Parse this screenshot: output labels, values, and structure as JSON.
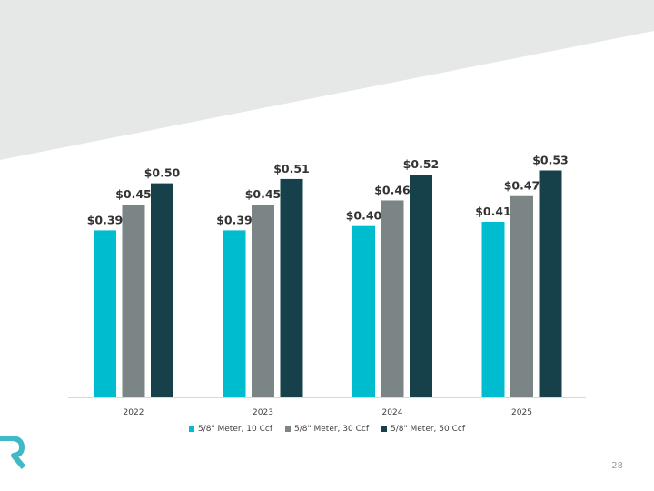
{
  "colors": {
    "band": "#e6e7e7",
    "series": [
      "#00bccf",
      "#7b8585",
      "#17414a"
    ],
    "logo": "#3fb9c6",
    "axis": "#d9d9d9"
  },
  "page_number": "28",
  "logo_icon": "r-logo-icon",
  "chart_data": {
    "type": "bar",
    "categories": [
      "2022",
      "2023",
      "2024",
      "2025"
    ],
    "series": [
      {
        "name": "5/8\" Meter, 10 Ccf",
        "values": [
          0.39,
          0.39,
          0.4,
          0.41
        ],
        "labels": [
          "$0.39",
          "$0.39",
          "$0.40",
          "$0.41"
        ]
      },
      {
        "name": "5/8\" Meter, 30 Ccf",
        "values": [
          0.45,
          0.45,
          0.46,
          0.47
        ],
        "labels": [
          "$0.45",
          "$0.45",
          "$0.46",
          "$0.47"
        ]
      },
      {
        "name": "5/8\" Meter, 50 Ccf",
        "values": [
          0.5,
          0.51,
          0.52,
          0.53
        ],
        "labels": [
          "$0.50",
          "$0.51",
          "$0.52",
          "$0.53"
        ]
      }
    ],
    "title": "",
    "xlabel": "",
    "ylabel": "",
    "ylim": [
      0,
      0.6
    ],
    "grid": false,
    "legend_position": "bottom"
  }
}
